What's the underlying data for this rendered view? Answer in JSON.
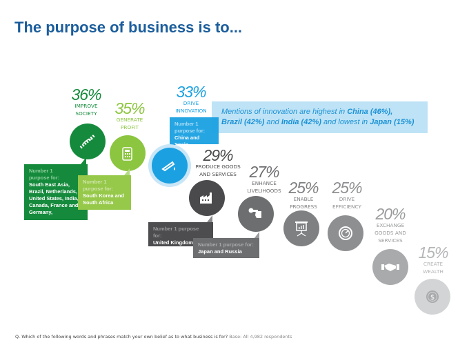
{
  "title": "The purpose of business is to...",
  "colors": {
    "title": "#1b5d9c",
    "improve_society": "#158a3c",
    "generate_profit": "#8cc540",
    "drive_innovation": "#1ba1e2",
    "produce": "#4a4a4c",
    "enhance": "#6d6e70"
  },
  "items": [
    {
      "pct": "36%",
      "label1": "IMPROVE",
      "label2": "SOCIETY",
      "icon": "dna-icon"
    },
    {
      "pct": "35%",
      "label1": "GENERATE",
      "label2": "PROFIT",
      "icon": "calculator-icon"
    },
    {
      "pct": "33%",
      "label1": "DRIVE",
      "label2": "INNOVATION",
      "icon": "test-tube-icon"
    },
    {
      "pct": "29%",
      "label1": "PRODUCE GOODS",
      "label2": "AND SERVICES",
      "icon": "factory-icon"
    },
    {
      "pct": "27%",
      "label1": "ENHANCE",
      "label2": "LIVELIHOODS",
      "icon": "wrench-hand-icon"
    },
    {
      "pct": "25%",
      "label1": "ENABLE",
      "label2": "PROGRESS",
      "icon": "presentation-chart-icon"
    },
    {
      "pct": "25%",
      "label1": "DRIVE",
      "label2": "EFFICIENCY",
      "icon": "speedometer-icon"
    },
    {
      "pct": "20%",
      "label1": "EXCHANGE",
      "label2": "GOODS AND",
      "label3": "SERVICES",
      "icon": "handshake-icon"
    },
    {
      "pct": "15%",
      "label1": "CREATE",
      "label2": "WEALTH",
      "icon": "dollar-coin-icon"
    }
  ],
  "callouts": {
    "society": {
      "heading1": "Number 1",
      "heading2": "purpose for:",
      "value": "South East Asia, Brazil, Netherlands, United States, India, Canada, France and Germany,"
    },
    "profit": {
      "heading1": "Number 1",
      "heading2": "purpose for:",
      "value": "South Korea and South Africa"
    },
    "innovation": {
      "heading1": "Number 1",
      "heading2": "purpose for:",
      "value": "China and Spain"
    },
    "produce": {
      "heading": "Number 1 purpose for:",
      "value": "United Kingdom and Australia"
    },
    "livelihoods": {
      "heading": "Number 1 purpose for:",
      "value": "Japan and Russia"
    }
  },
  "info": {
    "t1": "Mentions of innovation are highest in ",
    "b1": "China (46%),",
    "b2": "Brazil (42%)",
    "t2": " and ",
    "b3": "India (42%)",
    "t3": " and lowest in ",
    "b4": "Japan (15%)"
  },
  "footnote": {
    "question": "Q. Which of the following words and phrases match your own belief as to what business is for?",
    "base": "Base: All 4,982 respondents"
  }
}
